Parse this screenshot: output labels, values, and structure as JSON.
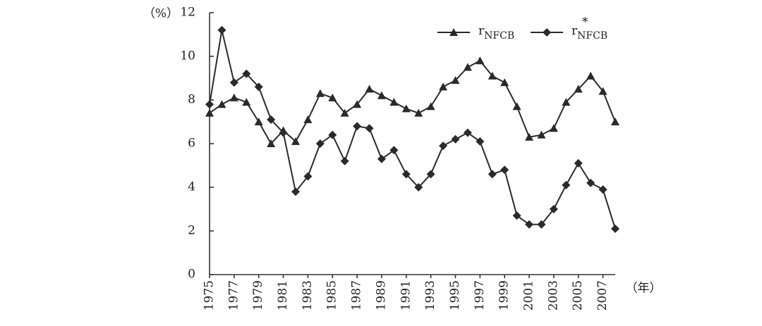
{
  "chart_data": {
    "type": "line",
    "y_unit": "（%）",
    "x_unit": "（年）",
    "x": [
      1975,
      1976,
      1977,
      1978,
      1979,
      1980,
      1981,
      1982,
      1983,
      1984,
      1985,
      1986,
      1987,
      1988,
      1989,
      1990,
      1991,
      1992,
      1993,
      1994,
      1995,
      1996,
      1997,
      1998,
      1999,
      2000,
      2001,
      2002,
      2003,
      2004,
      2005,
      2006,
      2007,
      2008
    ],
    "series": [
      {
        "name": "r",
        "subscript": "NFCB",
        "marker": "triangle",
        "color": "#2a2a2a",
        "values": [
          7.4,
          7.8,
          8.1,
          7.9,
          7.0,
          6.0,
          6.6,
          6.1,
          7.1,
          8.3,
          8.1,
          7.4,
          7.8,
          8.5,
          8.2,
          7.9,
          7.6,
          7.4,
          7.7,
          8.6,
          8.9,
          9.5,
          9.8,
          9.1,
          8.8,
          7.7,
          6.3,
          6.4,
          6.7,
          7.9,
          8.5,
          9.1,
          8.4,
          7.0
        ]
      },
      {
        "name": "r",
        "superscript": "*",
        "subscript": "NFCB",
        "marker": "diamond",
        "color": "#2a2a2a",
        "values": [
          7.8,
          11.2,
          8.8,
          9.2,
          8.6,
          7.1,
          6.5,
          3.8,
          4.5,
          6.0,
          6.4,
          5.2,
          6.8,
          6.7,
          5.3,
          5.7,
          4.6,
          4.0,
          4.6,
          5.9,
          6.2,
          6.5,
          6.1,
          4.6,
          4.8,
          2.7,
          2.3,
          2.3,
          3.0,
          4.1,
          5.1,
          4.2,
          3.9,
          2.1
        ]
      }
    ],
    "xlim": [
      1975,
      2008
    ],
    "xticks": [
      1975,
      1977,
      1979,
      1981,
      1983,
      1985,
      1987,
      1989,
      1991,
      1993,
      1995,
      1997,
      1999,
      2001,
      2003,
      2005,
      2007
    ],
    "ylim": [
      0,
      12
    ],
    "yticks": [
      0,
      2,
      4,
      6,
      8,
      10,
      12
    ]
  }
}
